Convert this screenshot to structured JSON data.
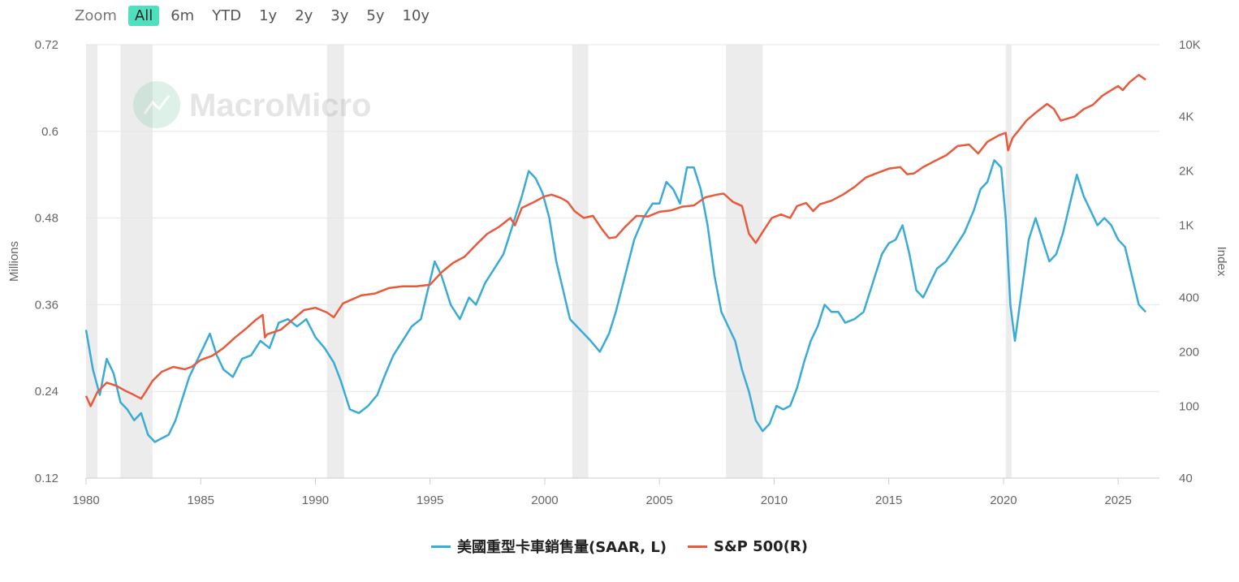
{
  "toolbar": {
    "zoom_label": "Zoom",
    "buttons": [
      "All",
      "6m",
      "YTD",
      "1y",
      "2y",
      "3y",
      "5y",
      "10y"
    ],
    "active": "All",
    "active_color": "#4fe0c0"
  },
  "watermark": {
    "text": "MacroMicro"
  },
  "colors": {
    "trucks": "#3aabd6",
    "sp500": "#e85a3c",
    "recession": "#ececec",
    "grid": "#e6e6e6"
  },
  "chart_data": {
    "type": "line",
    "title": "",
    "xlabel": "",
    "xlim": [
      1980,
      2026.8
    ],
    "x_ticks": [
      "1980",
      "1985",
      "1990",
      "1995",
      "2000",
      "2005",
      "2010",
      "2015",
      "2020",
      "2025"
    ],
    "left_axis": {
      "label": "Millions",
      "ylim": [
        0.12,
        0.72
      ],
      "ticks": [
        "0.12",
        "0.24",
        "0.36",
        "0.48",
        "0.6",
        "0.72"
      ]
    },
    "right_axis": {
      "label": "Index",
      "scale": "log",
      "ylim": [
        40,
        10000
      ],
      "ticks": [
        "40",
        "100",
        "200",
        "400",
        "1K",
        "2K",
        "4K",
        "10K"
      ],
      "tick_values": [
        40,
        100,
        200,
        400,
        1000,
        2000,
        4000,
        10000
      ]
    },
    "recessions": [
      [
        1980.0,
        1980.5
      ],
      [
        1981.5,
        1982.9
      ],
      [
        1990.5,
        1991.25
      ],
      [
        2001.2,
        2001.9
      ],
      [
        2007.9,
        2009.5
      ],
      [
        2020.1,
        2020.35
      ]
    ],
    "series": [
      {
        "name": "美國重型卡車銷售量(SAAR, L)",
        "axis": "left",
        "color": "#3aabd6",
        "x": [
          1980.0,
          1980.3,
          1980.6,
          1980.9,
          1981.2,
          1981.5,
          1981.8,
          1982.1,
          1982.4,
          1982.7,
          1983.0,
          1983.3,
          1983.6,
          1983.9,
          1984.2,
          1984.5,
          1984.8,
          1985.1,
          1985.4,
          1985.7,
          1986.0,
          1986.4,
          1986.8,
          1987.2,
          1987.6,
          1988.0,
          1988.4,
          1988.8,
          1989.2,
          1989.6,
          1990.0,
          1990.4,
          1990.8,
          1991.1,
          1991.5,
          1991.9,
          1992.3,
          1992.7,
          1993.0,
          1993.4,
          1993.8,
          1994.2,
          1994.6,
          1994.9,
          1995.2,
          1995.5,
          1995.9,
          1996.3,
          1996.7,
          1997.0,
          1997.4,
          1997.8,
          1998.2,
          1998.6,
          1999.0,
          1999.3,
          1999.6,
          1999.9,
          2000.2,
          2000.5,
          2000.8,
          2001.1,
          2001.4,
          2001.7,
          2002.0,
          2002.4,
          2002.8,
          2003.1,
          2003.5,
          2003.9,
          2004.3,
          2004.7,
          2005.0,
          2005.3,
          2005.6,
          2005.9,
          2006.2,
          2006.5,
          2006.8,
          2007.1,
          2007.4,
          2007.7,
          2008.0,
          2008.3,
          2008.6,
          2008.9,
          2009.2,
          2009.5,
          2009.8,
          2010.1,
          2010.4,
          2010.7,
          2011.0,
          2011.3,
          2011.6,
          2011.9,
          2012.2,
          2012.5,
          2012.8,
          2013.1,
          2013.5,
          2013.9,
          2014.3,
          2014.7,
          2015.0,
          2015.3,
          2015.6,
          2015.9,
          2016.2,
          2016.5,
          2016.8,
          2017.1,
          2017.5,
          2017.9,
          2018.3,
          2018.7,
          2019.0,
          2019.3,
          2019.6,
          2019.9,
          2020.1,
          2020.3,
          2020.5,
          2020.8,
          2021.1,
          2021.4,
          2021.7,
          2022.0,
          2022.3,
          2022.6,
          2022.9,
          2023.2,
          2023.5,
          2023.8,
          2024.1,
          2024.4,
          2024.7,
          2025.0,
          2025.3,
          2025.6,
          2025.9,
          2026.2
        ],
        "values": [
          0.325,
          0.27,
          0.235,
          0.285,
          0.265,
          0.225,
          0.215,
          0.2,
          0.21,
          0.18,
          0.17,
          0.175,
          0.18,
          0.2,
          0.23,
          0.26,
          0.28,
          0.3,
          0.32,
          0.29,
          0.27,
          0.26,
          0.285,
          0.29,
          0.31,
          0.3,
          0.335,
          0.34,
          0.33,
          0.34,
          0.315,
          0.3,
          0.28,
          0.255,
          0.215,
          0.21,
          0.22,
          0.235,
          0.26,
          0.29,
          0.31,
          0.33,
          0.34,
          0.38,
          0.42,
          0.4,
          0.36,
          0.34,
          0.37,
          0.36,
          0.39,
          0.41,
          0.43,
          0.47,
          0.51,
          0.545,
          0.535,
          0.515,
          0.48,
          0.42,
          0.38,
          0.34,
          0.33,
          0.32,
          0.31,
          0.295,
          0.32,
          0.35,
          0.4,
          0.45,
          0.48,
          0.5,
          0.5,
          0.53,
          0.52,
          0.5,
          0.55,
          0.55,
          0.52,
          0.47,
          0.4,
          0.35,
          0.33,
          0.31,
          0.27,
          0.24,
          0.2,
          0.185,
          0.195,
          0.22,
          0.215,
          0.22,
          0.245,
          0.28,
          0.31,
          0.33,
          0.36,
          0.35,
          0.35,
          0.335,
          0.34,
          0.35,
          0.39,
          0.43,
          0.445,
          0.45,
          0.47,
          0.43,
          0.38,
          0.37,
          0.39,
          0.41,
          0.42,
          0.44,
          0.46,
          0.49,
          0.52,
          0.53,
          0.56,
          0.55,
          0.48,
          0.36,
          0.31,
          0.38,
          0.45,
          0.48,
          0.45,
          0.42,
          0.43,
          0.46,
          0.5,
          0.54,
          0.51,
          0.49,
          0.47,
          0.48,
          0.47,
          0.45,
          0.44,
          0.4,
          0.36,
          0.35
        ]
      },
      {
        "name": "S&P 500(R)",
        "axis": "right",
        "color": "#e85a3c",
        "x": [
          1980.0,
          1980.2,
          1980.5,
          1980.9,
          1981.3,
          1981.7,
          1982.0,
          1982.4,
          1982.6,
          1982.9,
          1983.3,
          1983.8,
          1984.3,
          1984.6,
          1985.0,
          1985.5,
          1986.0,
          1986.5,
          1987.0,
          1987.4,
          1987.7,
          1987.8,
          1987.9,
          1988.5,
          1989.0,
          1989.5,
          1990.0,
          1990.5,
          1990.8,
          1991.2,
          1991.6,
          1992.0,
          1992.6,
          1993.2,
          1993.8,
          1994.4,
          1995.0,
          1995.5,
          1996.0,
          1996.5,
          1997.0,
          1997.5,
          1998.0,
          1998.5,
          1998.7,
          1999.0,
          1999.5,
          2000.0,
          2000.3,
          2000.7,
          2001.0,
          2001.3,
          2001.7,
          2002.1,
          2002.5,
          2002.8,
          2003.1,
          2003.5,
          2004.0,
          2004.5,
          2005.0,
          2005.5,
          2006.0,
          2006.5,
          2007.0,
          2007.5,
          2007.8,
          2008.2,
          2008.6,
          2008.9,
          2009.2,
          2009.5,
          2009.9,
          2010.3,
          2010.7,
          2011.0,
          2011.4,
          2011.7,
          2012.0,
          2012.5,
          2013.0,
          2013.5,
          2014.0,
          2014.5,
          2015.0,
          2015.5,
          2015.8,
          2016.1,
          2016.5,
          2017.0,
          2017.5,
          2018.0,
          2018.5,
          2018.9,
          2019.3,
          2019.8,
          2020.1,
          2020.2,
          2020.4,
          2020.7,
          2021.0,
          2021.4,
          2021.9,
          2022.2,
          2022.5,
          2022.8,
          2023.1,
          2023.5,
          2023.9,
          2024.3,
          2024.7,
          2025.0,
          2025.2,
          2025.5,
          2025.9,
          2026.2
        ],
        "values": [
          114,
          100,
          120,
          135,
          130,
          122,
          117,
          110,
          120,
          138,
          155,
          165,
          160,
          165,
          180,
          190,
          210,
          240,
          270,
          300,
          320,
          240,
          250,
          265,
          300,
          340,
          350,
          330,
          310,
          370,
          390,
          410,
          420,
          450,
          460,
          460,
          470,
          550,
          620,
          670,
          780,
          900,
          980,
          1100,
          1000,
          1250,
          1340,
          1450,
          1480,
          1420,
          1350,
          1200,
          1100,
          1130,
          950,
          850,
          860,
          980,
          1130,
          1120,
          1190,
          1210,
          1270,
          1290,
          1430,
          1480,
          1500,
          1350,
          1280,
          900,
          800,
          920,
          1100,
          1150,
          1100,
          1280,
          1330,
          1200,
          1310,
          1370,
          1480,
          1630,
          1840,
          1950,
          2060,
          2100,
          1920,
          1940,
          2100,
          2270,
          2440,
          2750,
          2800,
          2500,
          2900,
          3150,
          3250,
          2600,
          3050,
          3400,
          3800,
          4200,
          4700,
          4400,
          3800,
          3900,
          4000,
          4400,
          4650,
          5200,
          5600,
          5900,
          5600,
          6200,
          6800,
          6400
        ]
      }
    ]
  }
}
